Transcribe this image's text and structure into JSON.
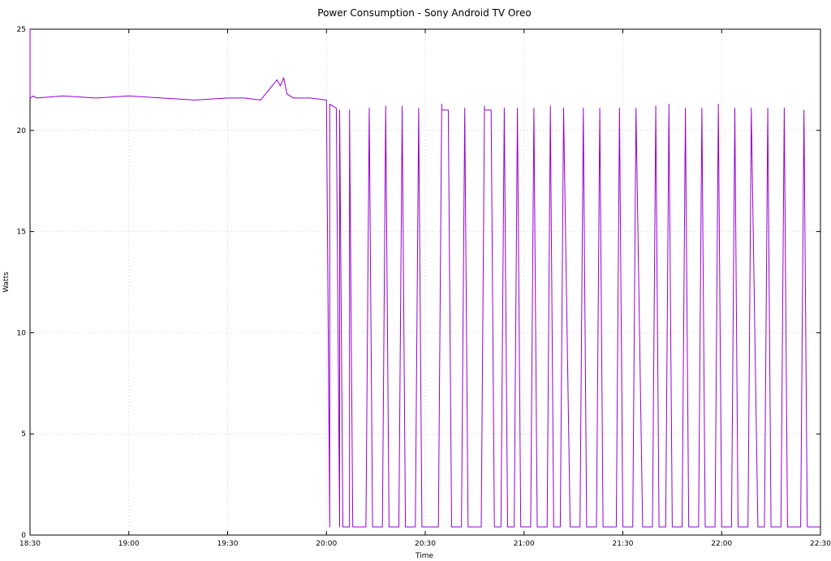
{
  "chart_data": {
    "type": "line",
    "title": "Power Consumption - Sony Android TV Oreo",
    "xlabel": "Time",
    "ylabel": "Watts",
    "xlim": [
      "18:30",
      "22:30"
    ],
    "ylim": [
      0,
      25
    ],
    "x_ticks": [
      "18:30",
      "19:00",
      "19:30",
      "20:00",
      "20:30",
      "21:00",
      "21:30",
      "22:00",
      "22:30"
    ],
    "y_ticks": [
      0,
      5,
      10,
      15,
      20,
      25
    ],
    "grid": true,
    "line_color": "#9400d3",
    "series": [
      {
        "x": [
          "18:30",
          "18:30",
          "18:31",
          "18:32",
          "18:40",
          "18:50",
          "19:00",
          "19:10",
          "19:20",
          "19:30",
          "19:35",
          "19:40",
          "19:44",
          "19:45",
          "19:46",
          "19:47",
          "19:48",
          "19:50",
          "19:55",
          "20:00",
          "20:01",
          "20:01",
          "20:03",
          "20:04",
          "20:04",
          "20:05",
          "20:07",
          "20:07",
          "20:08",
          "20:09",
          "20:12",
          "20:13",
          "20:13",
          "20:14",
          "20:15",
          "20:17",
          "20:18",
          "20:18",
          "20:19",
          "20:20",
          "20:22",
          "20:23",
          "20:23",
          "20:24",
          "20:25",
          "20:27",
          "20:28",
          "20:28",
          "20:29",
          "20:30",
          "20:34",
          "20:35",
          "20:35",
          "20:37",
          "20:38",
          "20:41",
          "20:42",
          "20:42",
          "20:43",
          "20:44",
          "20:47",
          "20:48",
          "20:48",
          "20:50",
          "20:51",
          "20:53",
          "20:54",
          "20:54",
          "20:55",
          "20:56",
          "20:57",
          "20:58",
          "20:58",
          "20:59",
          "21:00",
          "21:02",
          "21:03",
          "21:03",
          "21:04",
          "21:05",
          "21:07",
          "21:08",
          "21:08",
          "21:09",
          "21:10",
          "21:11",
          "21:12",
          "21:12",
          "21:14",
          "21:15",
          "21:17",
          "21:18",
          "21:18",
          "21:19",
          "21:20",
          "21:22",
          "21:23",
          "21:23",
          "21:24",
          "21:25",
          "21:28",
          "21:29",
          "21:29",
          "21:30",
          "21:31",
          "21:33",
          "21:34",
          "21:34",
          "21:36",
          "21:37",
          "21:39",
          "21:40",
          "21:40",
          "21:41",
          "21:42",
          "21:43",
          "21:44",
          "21:44",
          "21:45",
          "21:46",
          "21:48",
          "21:49",
          "21:49",
          "21:50",
          "21:51",
          "21:53",
          "21:54",
          "21:54",
          "21:55",
          "21:56",
          "21:58",
          "21:59",
          "21:59",
          "22:00",
          "22:01",
          "22:03",
          "22:04",
          "22:04",
          "22:05",
          "22:06",
          "22:08",
          "22:09",
          "22:09",
          "22:11",
          "22:12",
          "22:13",
          "22:14",
          "22:14",
          "22:15",
          "22:16",
          "22:18",
          "22:19",
          "22:19",
          "22:20",
          "22:21",
          "22:24",
          "22:25",
          "22:25",
          "22:26",
          "22:27",
          "22:30"
        ],
        "values": [
          25,
          21.6,
          21.7,
          21.6,
          21.7,
          21.6,
          21.7,
          21.6,
          21.5,
          21.6,
          21.6,
          21.5,
          22.3,
          22.5,
          22.2,
          22.6,
          21.8,
          21.6,
          21.6,
          21.5,
          0.4,
          21.3,
          21.1,
          0.4,
          21.0,
          0.4,
          0.4,
          21.0,
          0.4,
          0.4,
          0.4,
          21.1,
          21.0,
          0.4,
          0.4,
          0.4,
          21.2,
          21.0,
          0.4,
          0.4,
          0.4,
          21.2,
          21.0,
          0.4,
          0.4,
          0.4,
          21.1,
          21.0,
          0.4,
          0.4,
          0.4,
          21.3,
          21.0,
          21.0,
          0.4,
          0.4,
          21.1,
          21.0,
          0.4,
          0.4,
          0.4,
          21.2,
          21.0,
          21.0,
          0.4,
          0.4,
          21.1,
          21.0,
          0.4,
          0.4,
          0.4,
          21.1,
          21.0,
          0.4,
          0.4,
          0.4,
          21.1,
          21.0,
          0.4,
          0.4,
          0.4,
          21.2,
          21.0,
          0.4,
          0.4,
          0.4,
          21.1,
          21.0,
          0.4,
          0.4,
          0.4,
          21.1,
          21.0,
          0.4,
          0.4,
          0.4,
          21.1,
          21.0,
          0.4,
          0.4,
          0.4,
          21.1,
          21.0,
          0.4,
          0.4,
          0.4,
          21.1,
          21.0,
          0.4,
          0.4,
          0.4,
          21.2,
          21.0,
          0.4,
          0.4,
          0.4,
          21.3,
          21.0,
          0.4,
          0.4,
          0.4,
          21.1,
          21.0,
          0.4,
          0.4,
          0.4,
          21.1,
          21.0,
          0.4,
          0.4,
          0.4,
          21.3,
          21.0,
          0.4,
          0.4,
          0.4,
          21.1,
          21.0,
          0.4,
          0.4,
          0.4,
          21.1,
          21.0,
          0.4,
          0.4,
          0.4,
          21.1,
          21.0,
          0.4,
          0.4,
          0.4,
          21.1,
          21.0,
          0.4,
          0.4,
          0.4,
          21.0,
          21.0,
          0.4,
          0.4,
          0.4
        ]
      }
    ]
  }
}
